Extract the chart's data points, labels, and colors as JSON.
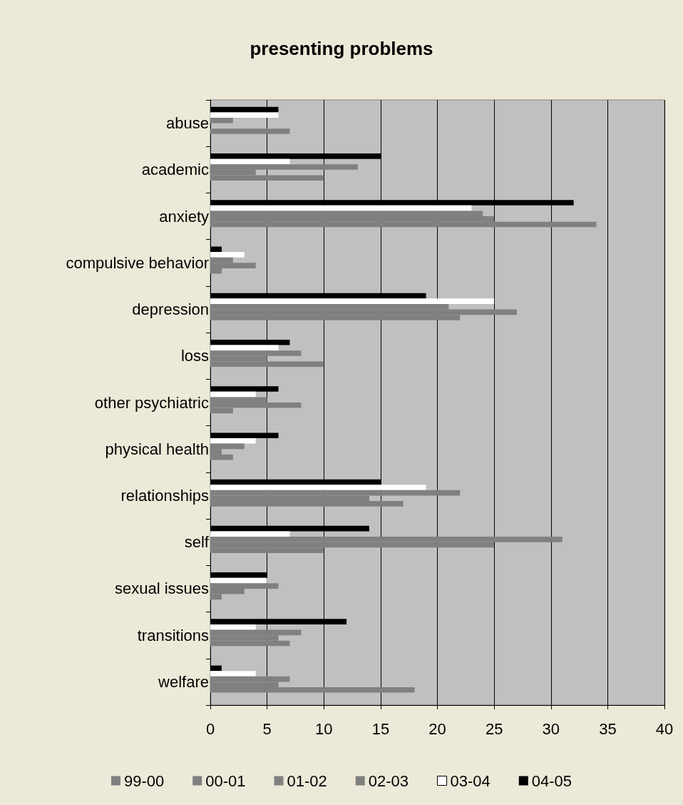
{
  "chart_data": {
    "type": "bar",
    "orientation": "horizontal",
    "title": "presenting problems",
    "categories": [
      "abuse",
      "academic",
      "anxiety",
      "compulsive behavior",
      "depression",
      "loss",
      "other psychiatric",
      "physical health",
      "relationships",
      "self",
      "sexual issues",
      "transitions",
      "welfare"
    ],
    "series": [
      {
        "name": "99-00",
        "color": "#808080",
        "values": [
          null,
          null,
          null,
          null,
          null,
          null,
          null,
          null,
          null,
          null,
          null,
          null,
          null
        ]
      },
      {
        "name": "00-01",
        "color": "#808080",
        "values": [
          7,
          10,
          34,
          1,
          22,
          10,
          2,
          2,
          17,
          10,
          1,
          7,
          18
        ]
      },
      {
        "name": "01-02",
        "color": "#808080",
        "values": [
          0,
          4,
          25,
          4,
          27,
          5,
          8,
          1,
          14,
          25,
          3,
          6,
          6
        ]
      },
      {
        "name": "02-03",
        "color": "#808080",
        "values": [
          2,
          13,
          24,
          2,
          21,
          8,
          5,
          3,
          22,
          31,
          6,
          8,
          7
        ]
      },
      {
        "name": "03-04",
        "color": "#ffffff",
        "values": [
          6,
          7,
          23,
          3,
          25,
          6,
          4,
          4,
          19,
          7,
          5,
          4,
          4
        ]
      },
      {
        "name": "04-05",
        "color": "#000000",
        "values": [
          6,
          15,
          32,
          1,
          19,
          7,
          6,
          6,
          15,
          14,
          5,
          12,
          1
        ]
      }
    ],
    "xlim": [
      0,
      40
    ],
    "xticks": [
      0,
      5,
      10,
      15,
      20,
      25,
      30,
      35,
      40
    ],
    "grid": "x",
    "legend": "bottom"
  }
}
